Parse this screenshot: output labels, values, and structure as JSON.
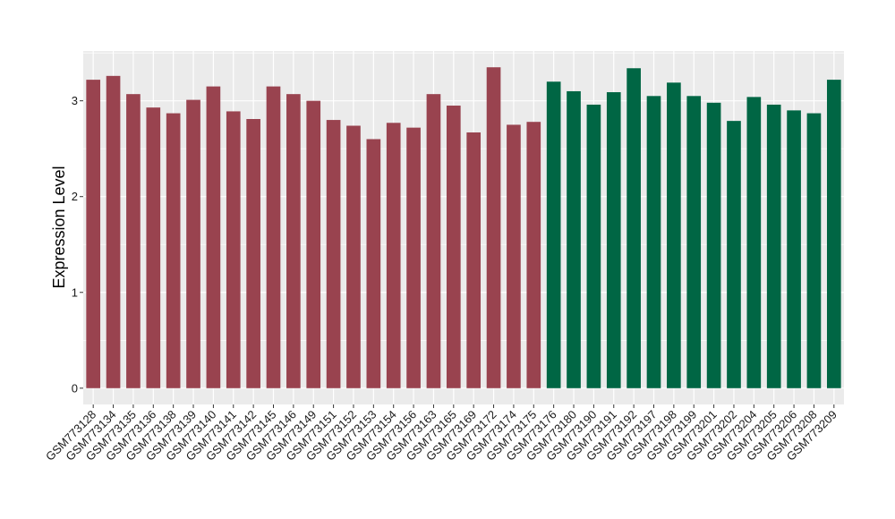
{
  "chart_data": {
    "type": "bar",
    "title": "",
    "xlabel": "",
    "ylabel": "Expression Level",
    "ylim": [
      -0.17,
      3.52
    ],
    "yticks": [
      0,
      1,
      2,
      3
    ],
    "grid": true,
    "legend": "none",
    "colors": {
      "group_a": "#99434f",
      "group_b": "#006644",
      "panel_bg": "#ebebeb",
      "grid": "#ffffff"
    },
    "categories": [
      "GSM773128",
      "GSM773134",
      "GSM773135",
      "GSM773136",
      "GSM773138",
      "GSM773139",
      "GSM773140",
      "GSM773141",
      "GSM773142",
      "GSM773145",
      "GSM773146",
      "GSM773149",
      "GSM773151",
      "GSM773152",
      "GSM773153",
      "GSM773154",
      "GSM773156",
      "GSM773163",
      "GSM773165",
      "GSM773169",
      "GSM773172",
      "GSM773174",
      "GSM773175",
      "GSM773176",
      "GSM773180",
      "GSM773190",
      "GSM773191",
      "GSM773192",
      "GSM773197",
      "GSM773198",
      "GSM773199",
      "GSM773201",
      "GSM773202",
      "GSM773204",
      "GSM773205",
      "GSM773206",
      "GSM773208",
      "GSM773209"
    ],
    "values": [
      3.22,
      3.26,
      3.07,
      2.93,
      2.87,
      3.01,
      3.15,
      2.89,
      2.81,
      3.15,
      3.07,
      3.0,
      2.8,
      2.74,
      2.6,
      2.77,
      2.72,
      3.07,
      2.95,
      2.67,
      3.35,
      2.75,
      2.78,
      3.2,
      3.1,
      2.96,
      3.09,
      3.34,
      3.05,
      3.19,
      3.05,
      2.98,
      2.79,
      3.04,
      2.96,
      2.9,
      2.87,
      3.22
    ],
    "groups": [
      "a",
      "a",
      "a",
      "a",
      "a",
      "a",
      "a",
      "a",
      "a",
      "a",
      "a",
      "a",
      "a",
      "a",
      "a",
      "a",
      "a",
      "a",
      "a",
      "a",
      "a",
      "a",
      "a",
      "b",
      "b",
      "b",
      "b",
      "b",
      "b",
      "b",
      "b",
      "b",
      "b",
      "b",
      "b",
      "b",
      "b",
      "b"
    ]
  }
}
